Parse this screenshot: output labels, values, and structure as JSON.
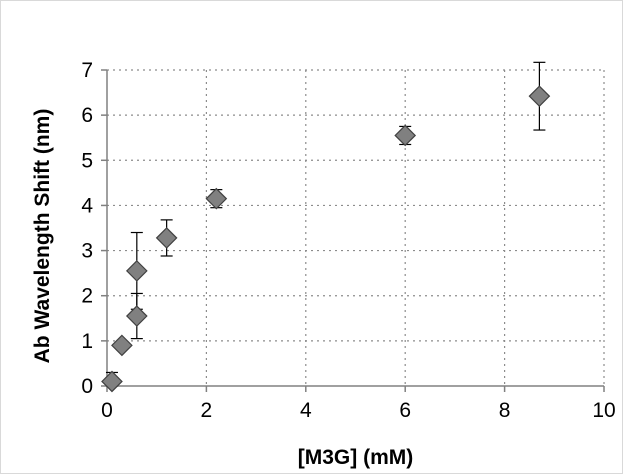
{
  "chart_data": {
    "type": "scatter",
    "title": "",
    "xlabel": "[M3G] (mM)",
    "ylabel": "Ab Wavelength Shift (nm)",
    "xlim": [
      0,
      10
    ],
    "ylim": [
      0,
      7
    ],
    "xticks": [
      0,
      2,
      4,
      6,
      8,
      10
    ],
    "yticks": [
      0,
      1,
      2,
      3,
      4,
      5,
      6,
      7
    ],
    "grid": "dotted, both axes",
    "marker": "diamond",
    "marker_color": "#808080",
    "points": [
      {
        "x": 0.1,
        "y": 0.1,
        "err": 0.2
      },
      {
        "x": 0.3,
        "y": 0.9,
        "err": 0.0
      },
      {
        "x": 0.6,
        "y": 1.55,
        "err": 0.5
      },
      {
        "x": 0.6,
        "y": 2.55,
        "err": 0.85
      },
      {
        "x": 1.2,
        "y": 3.28,
        "err": 0.4
      },
      {
        "x": 2.2,
        "y": 4.15,
        "err": 0.2
      },
      {
        "x": 6.0,
        "y": 5.55,
        "err": 0.2
      },
      {
        "x": 8.7,
        "y": 6.42,
        "err": 0.75
      }
    ]
  }
}
